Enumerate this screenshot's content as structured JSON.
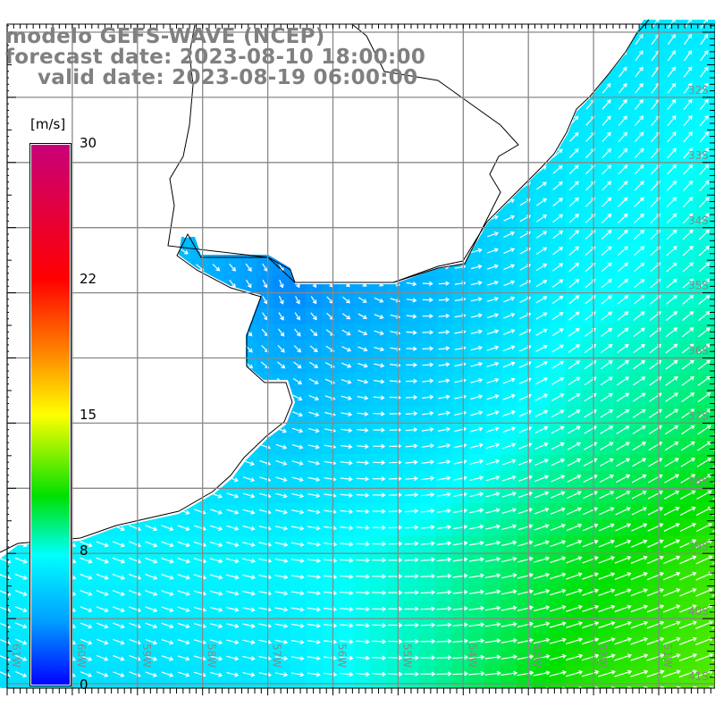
{
  "header": {
    "model": "modelo GEFS-WAVE (NCEP)",
    "forecast": "forecast date: 2023-08-10 18:00:00",
    "valid": "valid date: 2023-08-19 06:00:00"
  },
  "colorbar": {
    "unit": "[m/s]",
    "ticks": [
      "30",
      "22",
      "15",
      "8",
      "0"
    ],
    "range": [
      0,
      30
    ]
  },
  "axes": {
    "lat_labels": [
      "32S",
      "33S",
      "34S",
      "35S",
      "36S",
      "37S",
      "38S",
      "39S",
      "40S",
      "41S"
    ],
    "lon_labels": [
      "61W",
      "60W",
      "59W",
      "58W",
      "57W",
      "56W",
      "55W",
      "54W",
      "53W",
      "52W",
      "51W"
    ]
  },
  "field": {
    "units": "m/s",
    "lat_range": [
      "31S",
      "41S"
    ],
    "lon_range": [
      "61W",
      "51W"
    ],
    "speed_grid": [
      [
        5,
        5,
        5,
        5,
        6,
        6.5
      ],
      [
        5,
        5,
        4,
        5,
        6.5,
        7.5
      ],
      [
        5,
        5,
        3,
        4.5,
        7,
        8
      ],
      [
        5.5,
        5.5,
        5,
        6,
        8,
        9.5
      ],
      [
        7,
        7,
        7,
        8,
        10,
        11.5
      ],
      [
        6,
        6,
        6.5,
        8.5,
        11,
        12
      ]
    ],
    "direction_grid_deg": [
      [
        60,
        60,
        45,
        50,
        55,
        55
      ],
      [
        10,
        0,
        -45,
        10,
        45,
        50
      ],
      [
        0,
        -30,
        -70,
        0,
        40,
        40
      ],
      [
        -20,
        -30,
        -20,
        10,
        30,
        35
      ],
      [
        -20,
        -20,
        -10,
        5,
        20,
        25
      ],
      [
        -25,
        -20,
        -10,
        0,
        15,
        20
      ]
    ]
  }
}
